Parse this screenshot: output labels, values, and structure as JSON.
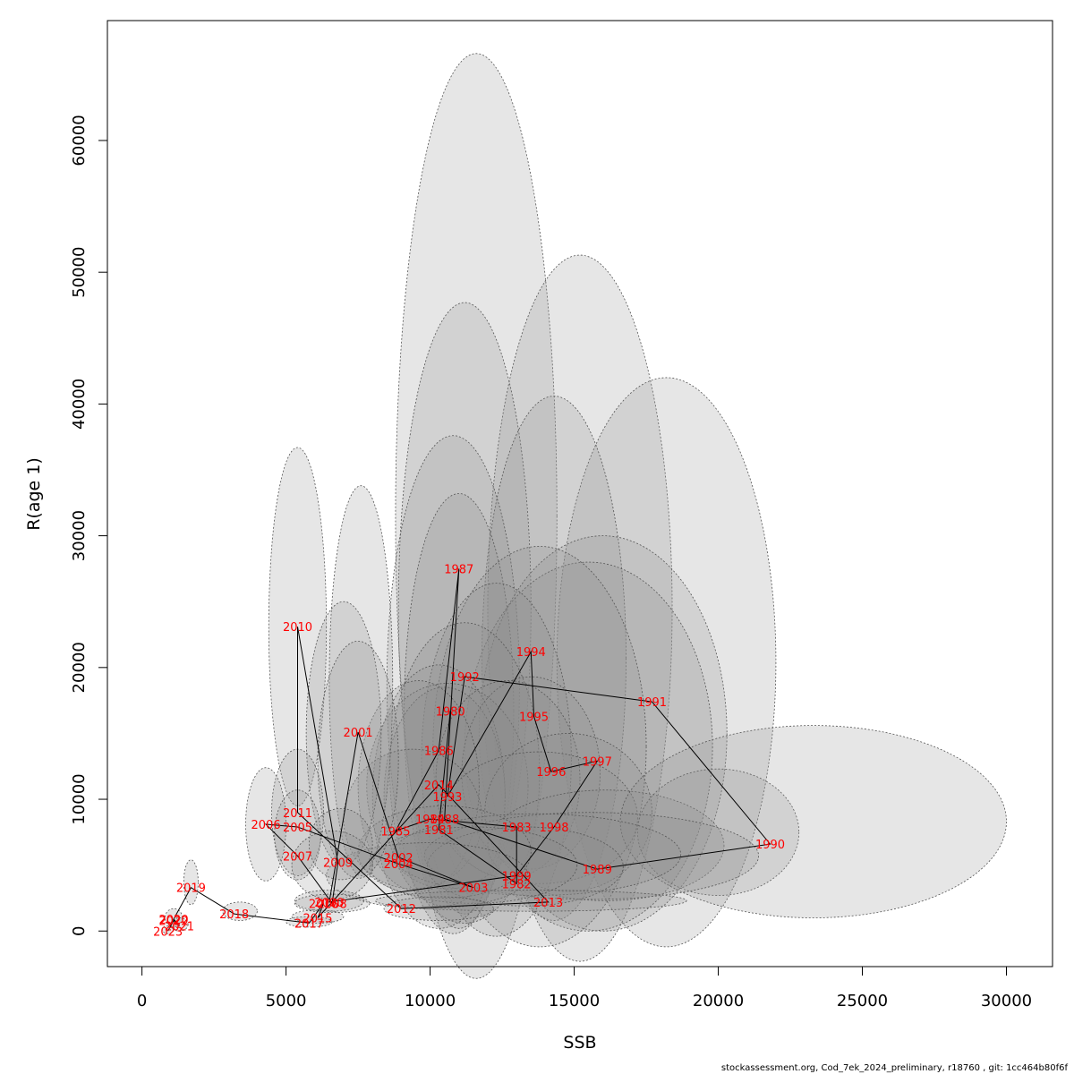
{
  "chart_data": {
    "type": "scatter",
    "title": "",
    "xlabel": "SSB",
    "ylabel": "R(age 1)",
    "xlim": [
      -1200,
      31600
    ],
    "ylim": [
      -2700,
      69100
    ],
    "xticks": [
      0,
      5000,
      10000,
      15000,
      20000,
      25000,
      30000
    ],
    "yticks": [
      0,
      10000,
      20000,
      30000,
      40000,
      50000,
      60000
    ],
    "grid": false,
    "legend": "none",
    "point_color": "#ff0000",
    "line_color": "#000000",
    "ellipse_fill": "#8c8c8c",
    "ellipse_fill_opacity": 0.22,
    "ellipse_stroke": "#555555",
    "points": [
      {
        "year": "1980",
        "ssb": 10700,
        "r": 16700
      },
      {
        "year": "1981",
        "ssb": 10300,
        "r": 7700
      },
      {
        "year": "1982",
        "ssb": 13000,
        "r": 3600
      },
      {
        "year": "1983",
        "ssb": 13000,
        "r": 7900
      },
      {
        "year": "1984",
        "ssb": 10000,
        "r": 8500
      },
      {
        "year": "1985",
        "ssb": 8800,
        "r": 7600
      },
      {
        "year": "1986",
        "ssb": 10300,
        "r": 13700
      },
      {
        "year": "1987",
        "ssb": 11000,
        "r": 27500
      },
      {
        "year": "1988",
        "ssb": 10500,
        "r": 8500
      },
      {
        "year": "1989",
        "ssb": 15800,
        "r": 4700
      },
      {
        "year": "1990",
        "ssb": 21800,
        "r": 6600
      },
      {
        "year": "1991",
        "ssb": 17700,
        "r": 17400
      },
      {
        "year": "1992",
        "ssb": 11200,
        "r": 19300
      },
      {
        "year": "1993",
        "ssb": 10600,
        "r": 10200
      },
      {
        "year": "1994",
        "ssb": 13500,
        "r": 21200
      },
      {
        "year": "1995",
        "ssb": 13600,
        "r": 16300
      },
      {
        "year": "1996",
        "ssb": 14200,
        "r": 12100
      },
      {
        "year": "1997",
        "ssb": 15800,
        "r": 12900
      },
      {
        "year": "1998",
        "ssb": 14300,
        "r": 7900
      },
      {
        "year": "1999",
        "ssb": 13000,
        "r": 4200
      },
      {
        "year": "2000",
        "ssb": 6500,
        "r": 2200
      },
      {
        "year": "2001",
        "ssb": 7500,
        "r": 15100
      },
      {
        "year": "2002",
        "ssb": 8900,
        "r": 5600
      },
      {
        "year": "2003",
        "ssb": 11500,
        "r": 3300
      },
      {
        "year": "2004",
        "ssb": 8900,
        "r": 5100
      },
      {
        "year": "2005",
        "ssb": 5400,
        "r": 7900
      },
      {
        "year": "2006",
        "ssb": 4300,
        "r": 8100
      },
      {
        "year": "2007",
        "ssb": 5400,
        "r": 5700
      },
      {
        "year": "2008",
        "ssb": 6600,
        "r": 2100
      },
      {
        "year": "2009",
        "ssb": 6800,
        "r": 5200
      },
      {
        "year": "2010",
        "ssb": 5400,
        "r": 23100
      },
      {
        "year": "2011",
        "ssb": 5400,
        "r": 9000
      },
      {
        "year": "2012",
        "ssb": 9000,
        "r": 1700
      },
      {
        "year": "2013",
        "ssb": 14100,
        "r": 2200
      },
      {
        "year": "2014",
        "ssb": 10300,
        "r": 11100
      },
      {
        "year": "2015",
        "ssb": 6100,
        "r": 1000
      },
      {
        "year": "2016",
        "ssb": 6300,
        "r": 2100
      },
      {
        "year": "2017",
        "ssb": 5800,
        "r": 600
      },
      {
        "year": "2018",
        "ssb": 3200,
        "r": 1300
      },
      {
        "year": "2019",
        "ssb": 1700,
        "r": 3300
      },
      {
        "year": "2020",
        "ssb": 1100,
        "r": 900
      },
      {
        "year": "2021",
        "ssb": 1300,
        "r": 400
      },
      {
        "year": "2022",
        "ssb": 1100,
        "r": 800
      },
      {
        "year": "2023",
        "ssb": 900,
        "r": 0
      }
    ],
    "confidence_ellipses": [
      {
        "cx": 11600,
        "cy": 31500,
        "rx": 2800,
        "ry": 35100
      },
      {
        "cx": 15200,
        "cy": 24500,
        "rx": 3200,
        "ry": 26800
      },
      {
        "cx": 18200,
        "cy": 20400,
        "rx": 3800,
        "ry": 21600
      },
      {
        "cx": 11200,
        "cy": 24500,
        "rx": 2300,
        "ry": 23200
      },
      {
        "cx": 14300,
        "cy": 20700,
        "rx": 2500,
        "ry": 19900
      },
      {
        "cx": 10800,
        "cy": 18700,
        "rx": 2300,
        "ry": 18900
      },
      {
        "cx": 11000,
        "cy": 16700,
        "rx": 1900,
        "ry": 16500
      },
      {
        "cx": 16000,
        "cy": 15000,
        "rx": 4300,
        "ry": 15000
      },
      {
        "cx": 15500,
        "cy": 14000,
        "rx": 4300,
        "ry": 14000
      },
      {
        "cx": 13800,
        "cy": 14000,
        "rx": 3700,
        "ry": 15200
      },
      {
        "cx": 12300,
        "cy": 13000,
        "rx": 2600,
        "ry": 13400
      },
      {
        "cx": 11200,
        "cy": 12000,
        "rx": 2600,
        "ry": 11400
      },
      {
        "cx": 10300,
        "cy": 10200,
        "rx": 2300,
        "ry": 10000
      },
      {
        "cx": 10500,
        "cy": 10200,
        "rx": 2100,
        "ry": 8300
      },
      {
        "cx": 10600,
        "cy": 11000,
        "rx": 2800,
        "ry": 7800
      },
      {
        "cx": 13500,
        "cy": 12000,
        "rx": 2400,
        "ry": 7300
      },
      {
        "cx": 12700,
        "cy": 11500,
        "rx": 2500,
        "ry": 7500
      },
      {
        "cx": 9600,
        "cy": 11000,
        "rx": 2100,
        "ry": 8000
      },
      {
        "cx": 9400,
        "cy": 8500,
        "rx": 2400,
        "ry": 5300
      },
      {
        "cx": 14800,
        "cy": 9000,
        "rx": 2900,
        "ry": 6000
      },
      {
        "cx": 13800,
        "cy": 8600,
        "rx": 3400,
        "ry": 5000
      },
      {
        "cx": 16100,
        "cy": 6500,
        "rx": 4100,
        "ry": 4200
      },
      {
        "cx": 20000,
        "cy": 7500,
        "rx": 2800,
        "ry": 4800
      },
      {
        "cx": 23300,
        "cy": 8300,
        "rx": 6700,
        "ry": 7300
      },
      {
        "cx": 15600,
        "cy": 5700,
        "rx": 5800,
        "ry": 3300
      },
      {
        "cx": 13700,
        "cy": 5800,
        "rx": 5000,
        "ry": 3100
      },
      {
        "cx": 13300,
        "cy": 4900,
        "rx": 3400,
        "ry": 3000
      },
      {
        "cx": 11500,
        "cy": 5000,
        "rx": 3600,
        "ry": 2900
      },
      {
        "cx": 10500,
        "cy": 6000,
        "rx": 3000,
        "ry": 3500
      },
      {
        "cx": 9900,
        "cy": 4200,
        "rx": 3500,
        "ry": 2500
      },
      {
        "cx": 13500,
        "cy": 2300,
        "rx": 5400,
        "ry": 800
      },
      {
        "cx": 10300,
        "cy": 1700,
        "rx": 1900,
        "ry": 900
      },
      {
        "cx": 7600,
        "cy": 19000,
        "rx": 1100,
        "ry": 14800
      },
      {
        "cx": 5400,
        "cy": 23100,
        "rx": 1000,
        "ry": 13600
      },
      {
        "cx": 7000,
        "cy": 15000,
        "rx": 1300,
        "ry": 10000
      },
      {
        "cx": 7500,
        "cy": 13000,
        "rx": 1400,
        "ry": 9000
      },
      {
        "cx": 5400,
        "cy": 9000,
        "rx": 900,
        "ry": 4800
      },
      {
        "cx": 4300,
        "cy": 8100,
        "rx": 700,
        "ry": 4300
      },
      {
        "cx": 5400,
        "cy": 7300,
        "rx": 800,
        "ry": 3400
      },
      {
        "cx": 6900,
        "cy": 6600,
        "rx": 1100,
        "ry": 2700
      },
      {
        "cx": 6600,
        "cy": 5000,
        "rx": 1400,
        "ry": 2600
      },
      {
        "cx": 6500,
        "cy": 2300,
        "rx": 1200,
        "ry": 800
      },
      {
        "cx": 6600,
        "cy": 2100,
        "rx": 1300,
        "ry": 700
      },
      {
        "cx": 6100,
        "cy": 1100,
        "rx": 900,
        "ry": 500
      },
      {
        "cx": 5800,
        "cy": 700,
        "rx": 800,
        "ry": 400
      },
      {
        "cx": 3400,
        "cy": 1500,
        "rx": 600,
        "ry": 700
      },
      {
        "cx": 1700,
        "cy": 3700,
        "rx": 250,
        "ry": 1700
      },
      {
        "cx": 1100,
        "cy": 1000,
        "rx": 300,
        "ry": 700
      },
      {
        "cx": 1300,
        "cy": 500,
        "rx": 300,
        "ry": 500
      },
      {
        "cx": 900,
        "cy": 100,
        "rx": 200,
        "ry": 300
      }
    ]
  },
  "footer": {
    "text": "stockassessment.org, Cod_7ek_2024_preliminary, r18760 , git: 1cc464b80f6f"
  }
}
